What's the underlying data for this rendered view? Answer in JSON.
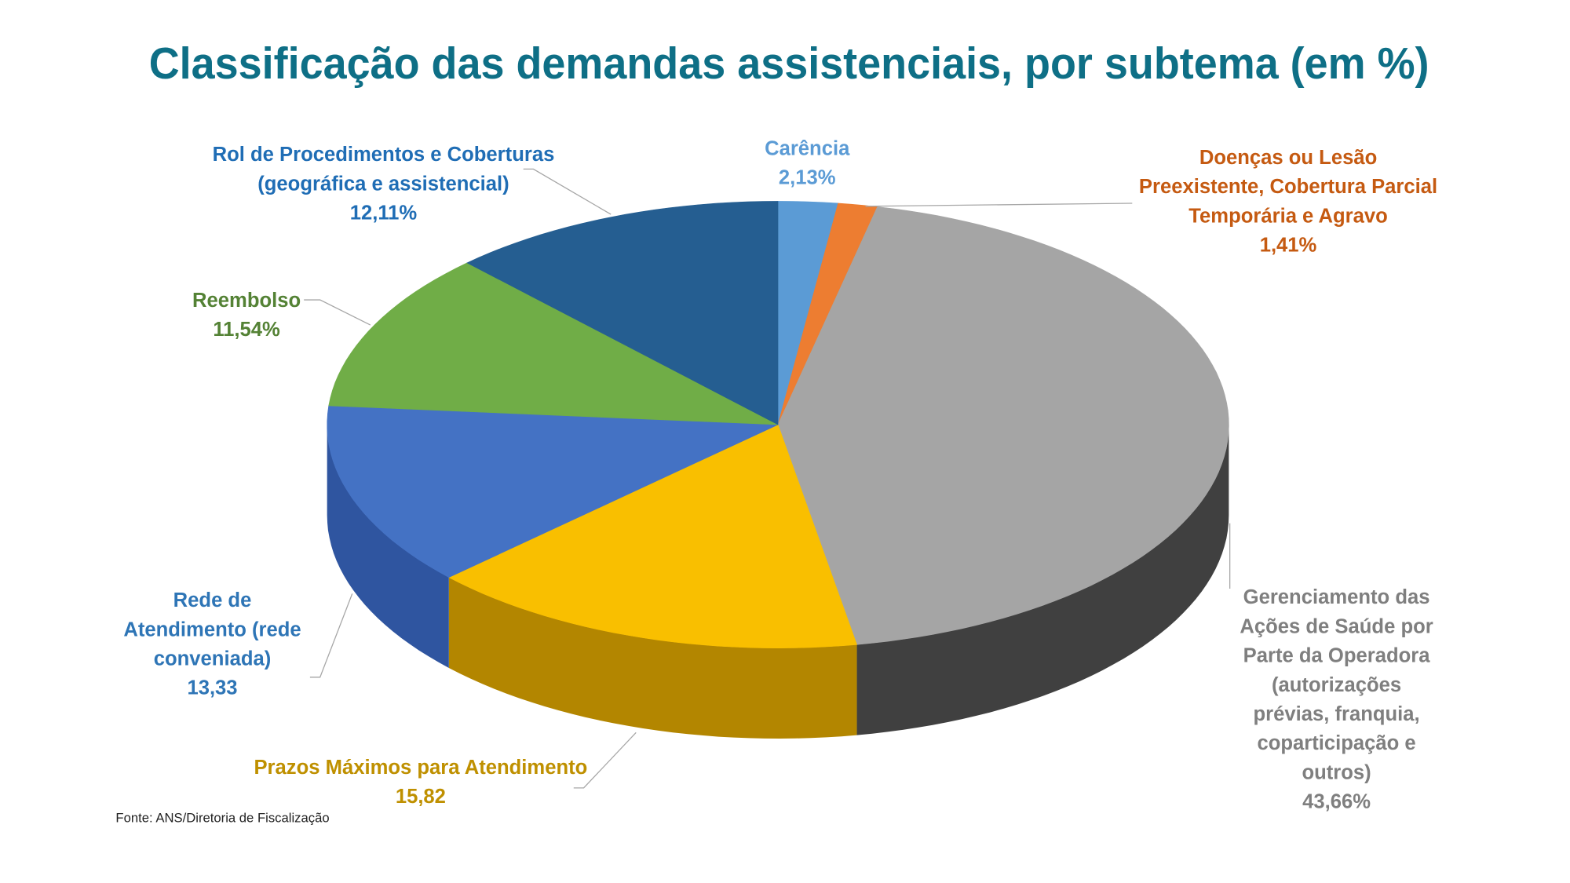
{
  "chart_data": {
    "type": "pie",
    "style": "3d",
    "title": "Classificação das demandas assistenciais, por subtema (em %)",
    "source": "Fonte: ANS/Diretoria de Fiscalização",
    "title_color": "#0e6f86",
    "slices": [
      {
        "name": "Carência",
        "value": 2.13,
        "value_label": "2,13%",
        "label_lines": [
          "Carência"
        ],
        "color": "#5b9bd5",
        "side_color": "#3f77ab",
        "label_color": "#5b9bd5"
      },
      {
        "name": "Doenças ou Lesão Preexistente, Cobertura Parcial Temporária e Agravo",
        "value": 1.41,
        "value_label": "1,41%",
        "label_lines": [
          "Doenças ou Lesão",
          "Preexistente, Cobertura Parcial",
          "Temporária e Agravo"
        ],
        "color": "#ed7d31",
        "side_color": "#b85a1c",
        "label_color": "#c55a11"
      },
      {
        "name": "Gerenciamento das Ações de Saúde por Parte da Operadora (autorizações prévias, franquia, coparticipação e outros)",
        "value": 43.66,
        "value_label": "43,66%",
        "label_lines": [
          "Gerenciamento das",
          "Ações de Saúde por",
          "Parte da Operadora",
          "(autorizações",
          "prévias, franquia,",
          "coparticipação e",
          "outros)"
        ],
        "color": "#a5a5a5",
        "side_color": "#404040",
        "label_color": "#7f7f7f"
      },
      {
        "name": "Prazos Máximos para Atendimento",
        "value": 15.82,
        "value_label": "15,82",
        "label_lines": [
          "Prazos Máximos para Atendimento"
        ],
        "color": "#f9bf00",
        "side_color": "#b38600",
        "label_color": "#bf9000"
      },
      {
        "name": "Rede de Atendimento (rede conveniada)",
        "value": 13.33,
        "value_label": "13,33",
        "label_lines": [
          "Rede de",
          "Atendimento (rede",
          "conveniada)"
        ],
        "color": "#4472c4",
        "side_color": "#2f55a0",
        "label_color": "#2e75b6"
      },
      {
        "name": "Reembolso",
        "value": 11.54,
        "value_label": "11,54%",
        "label_lines": [
          "Reembolso"
        ],
        "color": "#70ad47",
        "side_color": "#4e8030",
        "label_color": "#548235"
      },
      {
        "name": "Rol de Procedimentos e Coberturas (geográfica e assistencial)",
        "value": 12.11,
        "value_label": "12,11%",
        "label_lines": [
          "Rol de Procedimentos e Coberturas",
          "(geográfica e assistencial)"
        ],
        "color": "#255e91",
        "side_color": "#1a466e",
        "label_color": "#1f6db5"
      }
    ]
  }
}
